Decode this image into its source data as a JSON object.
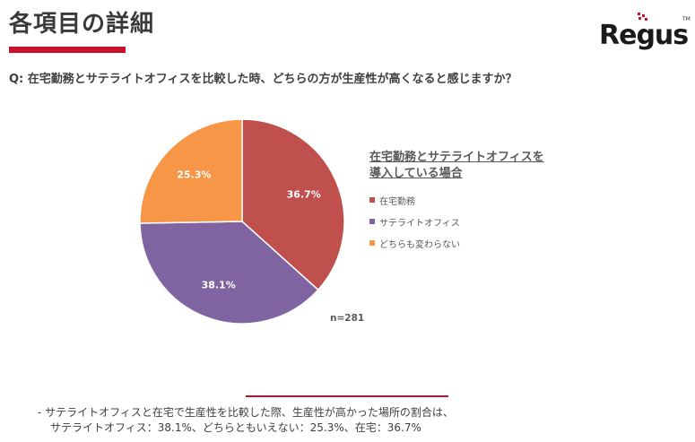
{
  "header": {
    "title": "各項目の詳細",
    "logo_text": "Regus",
    "logo_tm": "TM",
    "question": "Q: 在宅勤務とサテライトオフィスを比較した時、どちらの方が生産性が高くなると感じますか？"
  },
  "colors": {
    "accent": "#c8102e",
    "logo_red": "#c8102e"
  },
  "chart_data": {
    "type": "pie",
    "title": "",
    "legend_title": [
      "在宅勤務とサテライトオフィスを",
      "導入している場合"
    ],
    "legend_placement": "right",
    "slices": [
      {
        "label": "在宅勤務",
        "value": 36.7,
        "display": "36.7%",
        "color": "#c0504d"
      },
      {
        "label": "サテライトオフィス",
        "value": 38.1,
        "display": "38.1%",
        "color": "#8064a2"
      },
      {
        "label": "どちらも変わらない",
        "value": 25.3,
        "display": "25.3%",
        "color": "#f79646"
      }
    ],
    "n_label": "n=281"
  },
  "footer": {
    "note_line1": "- サテライトオフィスと在宅で生産性を比較した際、生産性が高かった場所の割合は、",
    "note_line2": "サテライトオフィス：38.1%、どちらともいえない：25.3%、在宅：36.7%"
  }
}
